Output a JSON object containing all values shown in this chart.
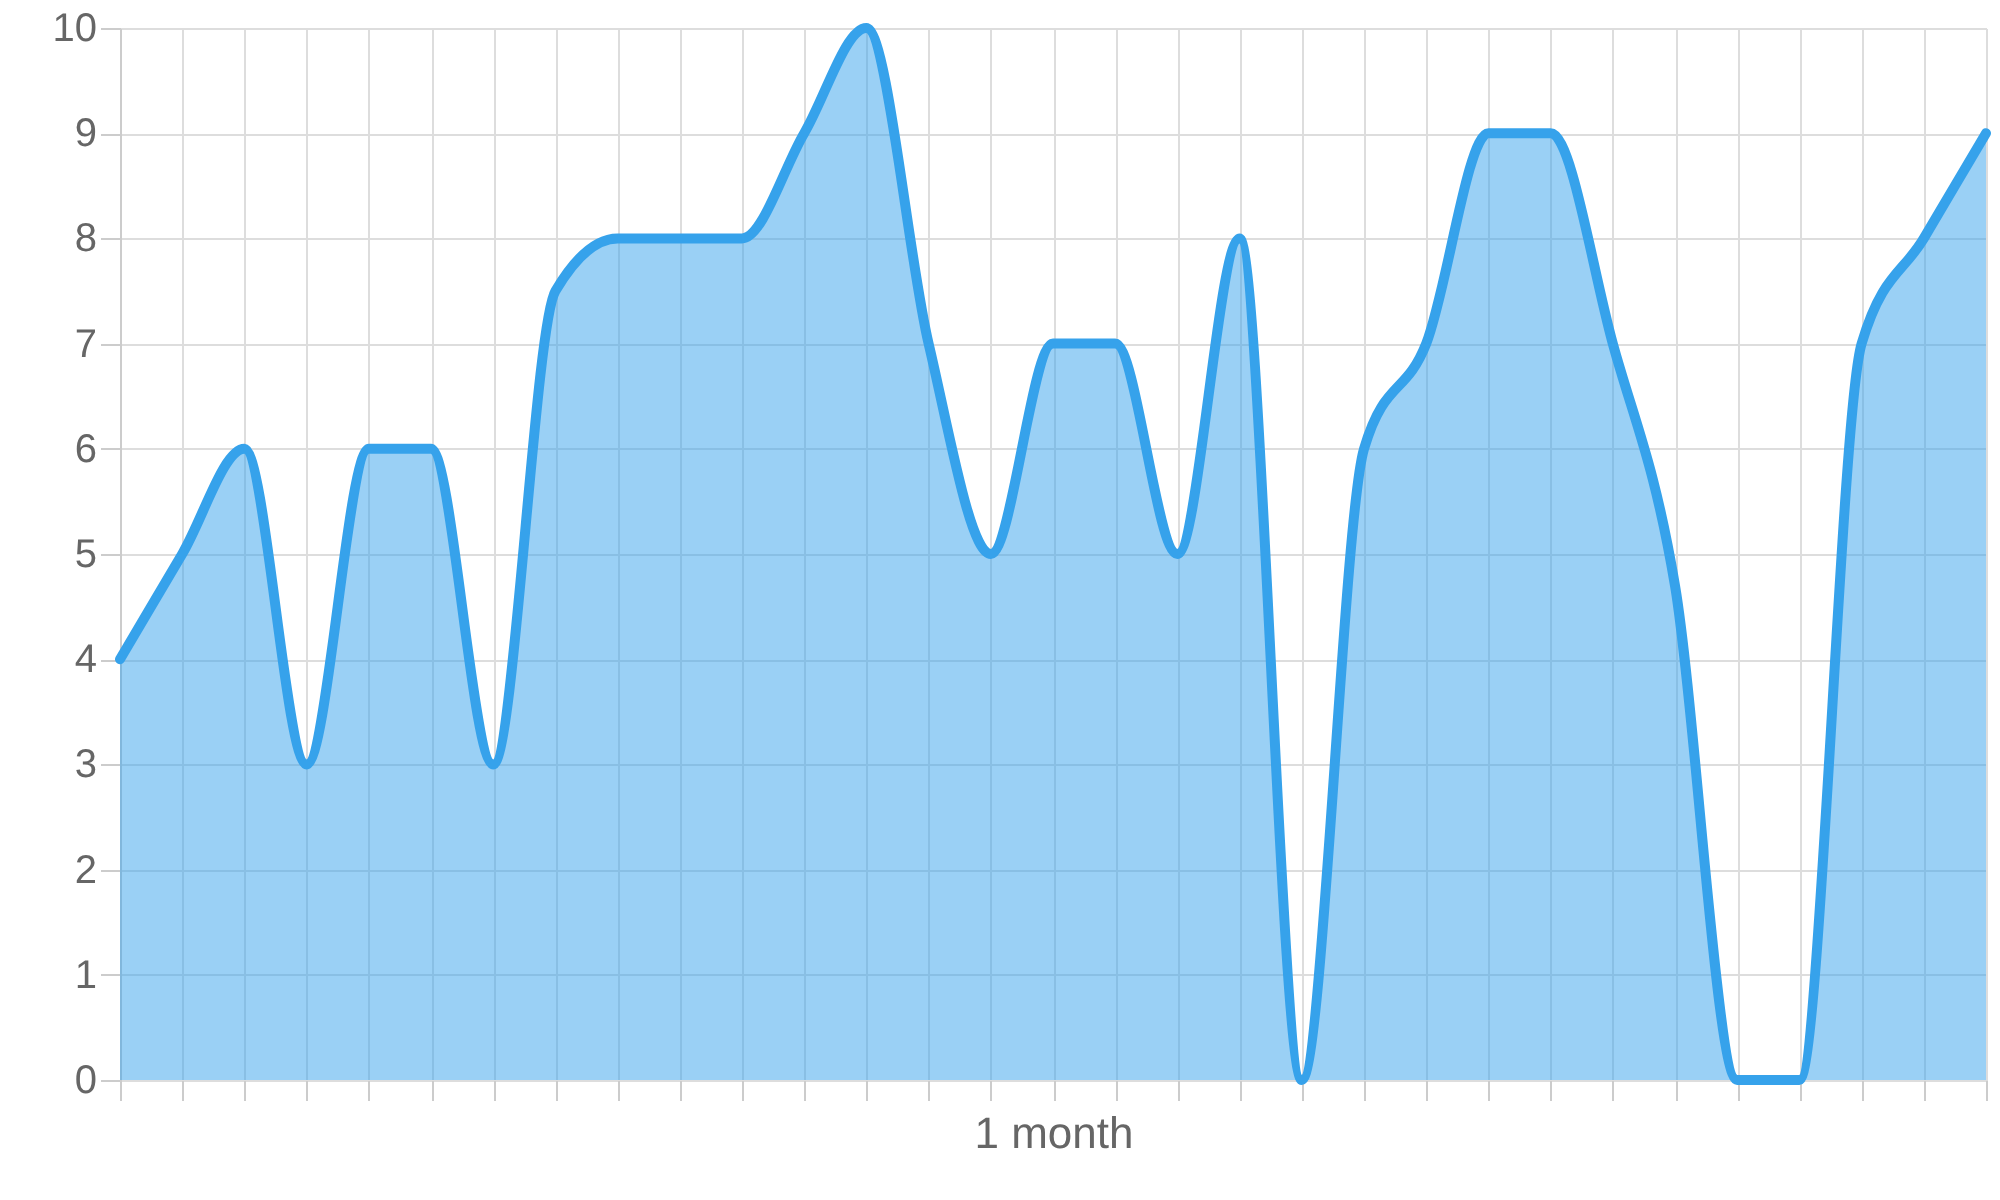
{
  "chart_data": {
    "type": "area",
    "xlabel": "1 month",
    "categories": [
      null,
      null,
      null,
      null,
      null,
      null,
      null,
      null,
      null,
      null,
      null,
      null,
      null,
      null,
      null,
      null,
      null,
      null,
      null,
      null,
      null,
      null,
      null,
      null,
      null,
      null,
      null,
      null,
      null,
      null,
      null
    ],
    "series": [
      {
        "color": "#36a2eb",
        "values": [
          4,
          5,
          6,
          3,
          6,
          6,
          3,
          7.5,
          8,
          8,
          8,
          9,
          10,
          7,
          5,
          7,
          7,
          5,
          8,
          0,
          6,
          7,
          9,
          9,
          7,
          4.7,
          0,
          0,
          7,
          8,
          9
        ]
      }
    ],
    "ylim": [
      0,
      10
    ],
    "yticks": [
      0,
      1,
      2,
      3,
      4,
      5,
      6,
      7,
      8,
      9,
      10
    ],
    "grid": true,
    "tick_labels": "y"
  }
}
